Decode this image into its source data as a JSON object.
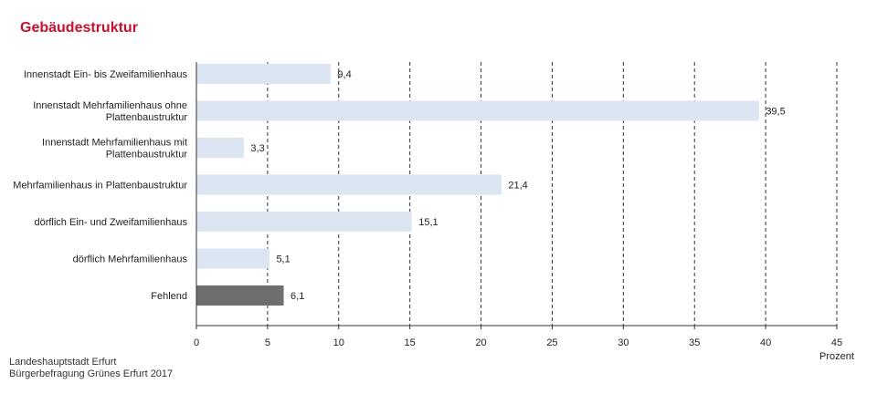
{
  "title": "Gebäudestruktur",
  "chart_data": {
    "type": "bar",
    "orientation": "horizontal",
    "title": "Gebäudestruktur",
    "categories": [
      "Innenstadt Ein- bis Zweifamilienhaus",
      "Innenstadt Mehrfamilienhaus ohne Plattenbaustruktur",
      "Innenstadt Mehrfamilienhaus mit Plattenbaustruktur",
      "Mehrfamilienhaus in Plattenbaustruktur",
      "dörflich Ein- und Zweifamilienhaus",
      "dörflich Mehrfamilienhaus",
      "Fehlend"
    ],
    "category_lines": [
      [
        "Innenstadt Ein- bis Zweifamilienhaus"
      ],
      [
        "Innenstadt Mehrfamilienhaus ohne",
        "Plattenbaustruktur"
      ],
      [
        "Innenstadt Mehrfamilienhaus mit",
        "Plattenbaustruktur"
      ],
      [
        "Mehrfamilienhaus in Plattenbaustruktur"
      ],
      [
        "dörflich Ein- und Zweifamilienhaus"
      ],
      [
        "dörflich Mehrfamilienhaus"
      ],
      [
        "Fehlend"
      ]
    ],
    "values": [
      9.4,
      39.5,
      3.3,
      21.4,
      15.1,
      5.1,
      6.1
    ],
    "value_labels": [
      "9,4",
      "39,5",
      "3,3",
      "21,4",
      "15,1",
      "5,1",
      "6,1"
    ],
    "xlim": [
      0,
      45
    ],
    "xticks": [
      0,
      5,
      10,
      15,
      20,
      25,
      30,
      35,
      40,
      45
    ],
    "xlabel": "Prozent",
    "ylabel": "",
    "grid": "vertical dashed",
    "colors": {
      "bar": "#dce6f2",
      "missing_bar": "#6e6e6e",
      "grid": "#333333",
      "title": "#c8102e"
    }
  },
  "source": {
    "line1": "Landeshauptstadt Erfurt",
    "line2": "Bürgerbefragung Grünes Erfurt 2017"
  }
}
